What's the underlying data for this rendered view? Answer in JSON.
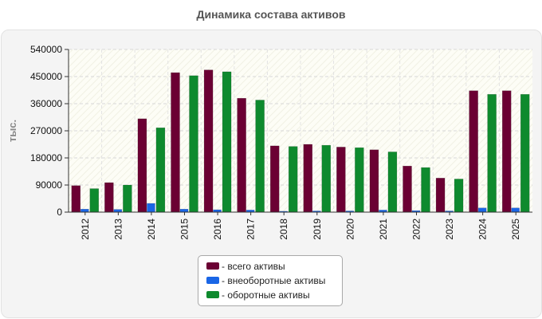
{
  "chart_data": {
    "type": "bar",
    "title": "Динамика состава активов",
    "ylabel": "тыс.",
    "xlabel": "",
    "ylim": [
      0,
      540000
    ],
    "yticks": [
      "0",
      "90000",
      "180000",
      "270000",
      "360000",
      "450000",
      "540000"
    ],
    "categories": [
      "2012",
      "2013",
      "2014",
      "2015",
      "2016",
      "2017",
      "2018",
      "2019",
      "2020",
      "2021",
      "2022",
      "2023",
      "2024",
      "2025"
    ],
    "series": [
      {
        "name": "- всего активы",
        "color": "#6b0033",
        "values": [
          88000,
          98000,
          310000,
          463000,
          472000,
          378000,
          220000,
          225000,
          216000,
          207000,
          153000,
          113000,
          403000,
          403000
        ]
      },
      {
        "name": "- внеоборотные активы",
        "color": "#1a66e6",
        "values": [
          10000,
          9000,
          29000,
          10000,
          8000,
          7000,
          3000,
          4000,
          4000,
          7000,
          5000,
          4000,
          14000,
          14000
        ]
      },
      {
        "name": "- оборотные активы",
        "color": "#0e8a2e",
        "values": [
          78000,
          90000,
          280000,
          453000,
          466000,
          372000,
          218000,
          222000,
          214000,
          200000,
          148000,
          110000,
          391000,
          391000
        ]
      }
    ],
    "grid": true,
    "legend_position": "bottom-center"
  }
}
